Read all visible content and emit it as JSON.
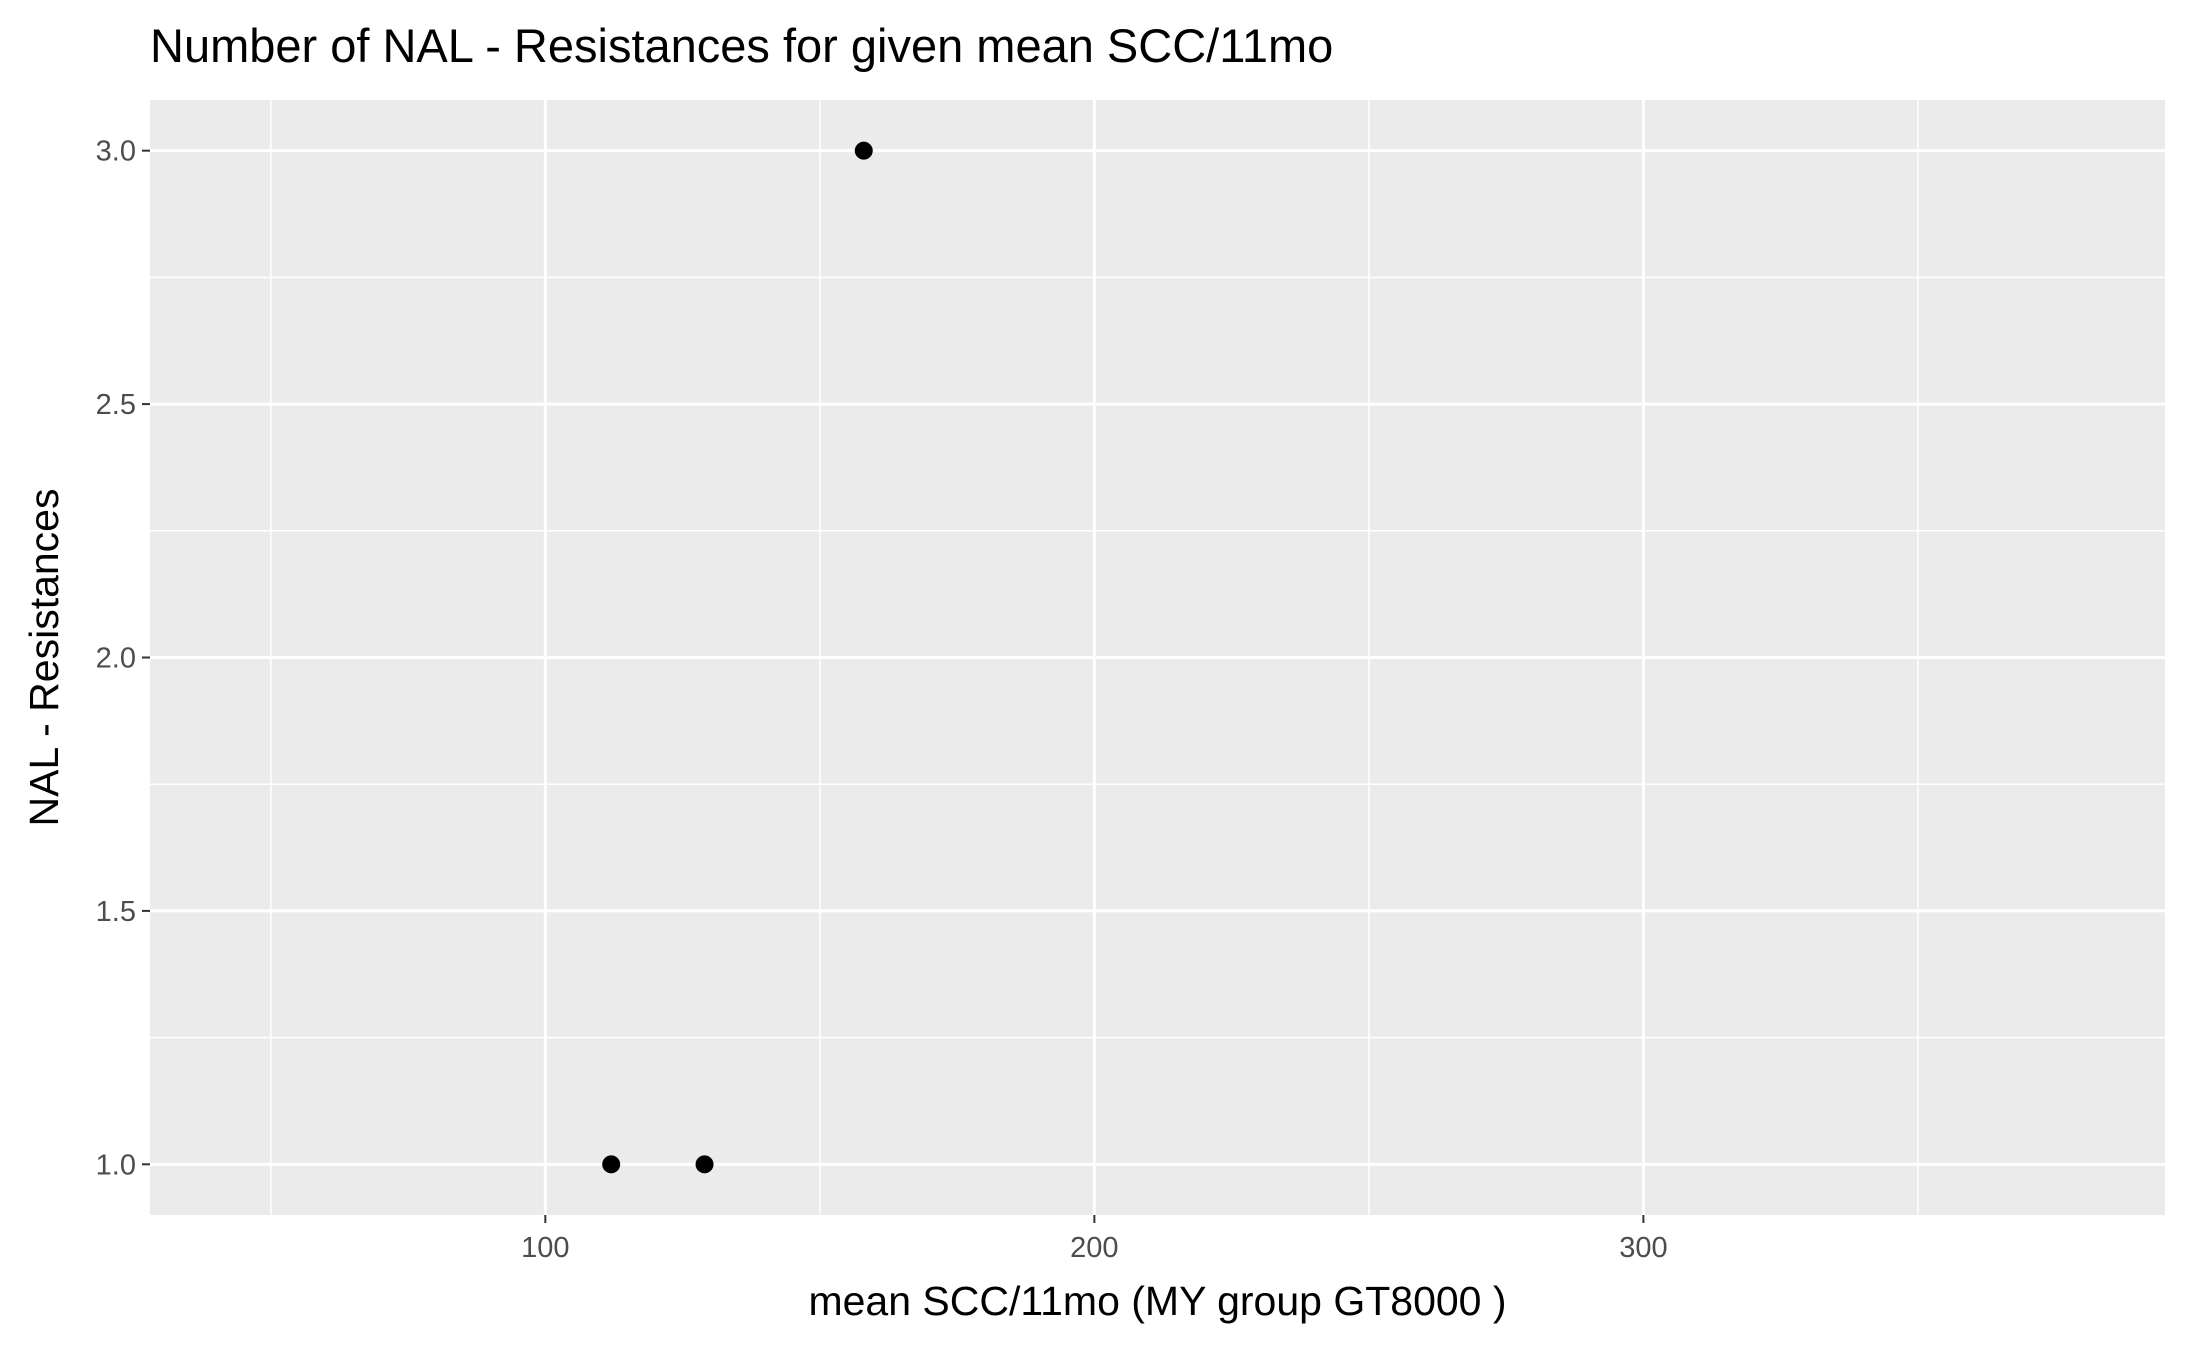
{
  "chart_data": {
    "type": "scatter",
    "title": "Number of NAL - Resistances for given mean SCC/11mo",
    "xlabel": "mean SCC/11mo     (MY group GT8000 )",
    "ylabel": "NAL - Resistances",
    "xlim": [
      28,
      395
    ],
    "ylim": [
      0.9,
      3.1
    ],
    "x_ticks": [
      100,
      200,
      300
    ],
    "x_tick_labels": [
      "100",
      "200",
      "300"
    ],
    "x_minor_ticks": [
      50,
      150,
      250,
      350
    ],
    "y_ticks": [
      1.0,
      1.5,
      2.0,
      2.5,
      3.0
    ],
    "y_tick_labels": [
      "1.0",
      "1.5",
      "2.0",
      "2.5",
      "3.0"
    ],
    "y_minor_ticks": [
      1.25,
      1.75,
      2.25,
      2.75
    ],
    "grid": true,
    "colors": {
      "panel": "#ebebeb",
      "grid": "#ffffff",
      "point": "#000000",
      "tick": "#333333"
    },
    "points": [
      {
        "x": 112,
        "y": 1.0
      },
      {
        "x": 129,
        "y": 1.0
      },
      {
        "x": 158,
        "y": 3.0
      }
    ]
  }
}
